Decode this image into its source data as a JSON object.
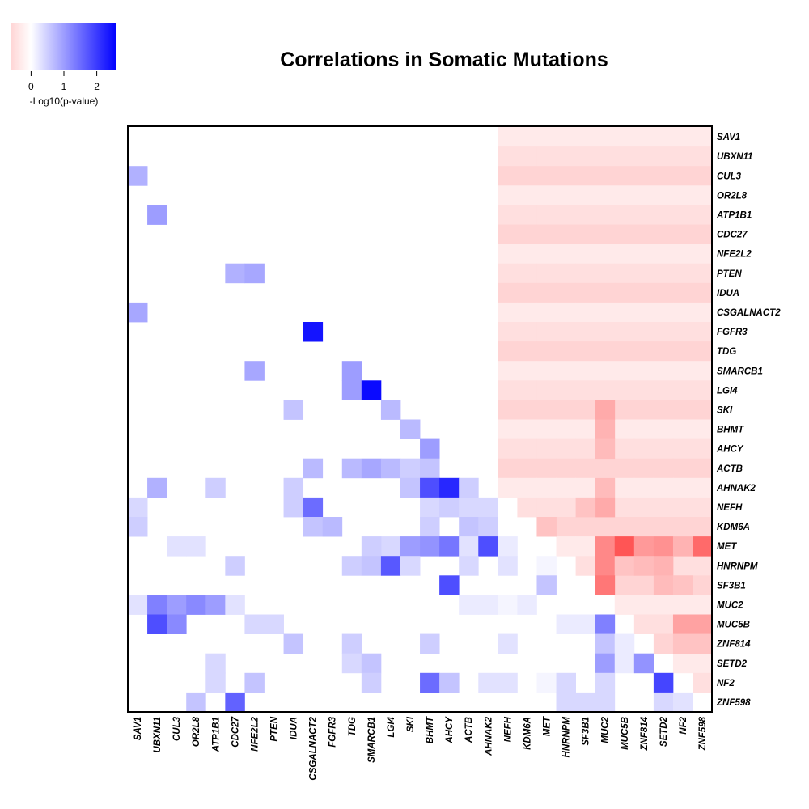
{
  "chart_data": {
    "type": "heatmap",
    "title": "Correlations in Somatic Mutations",
    "genes": [
      "SAV1",
      "UBXN11",
      "CUL3",
      "OR2L8",
      "ATP1B1",
      "CDC27",
      "NFE2L2",
      "PTEN",
      "IDUA",
      "CSGALNACT2",
      "FGFR3",
      "TDG",
      "SMARCB1",
      "LGI4",
      "SKI",
      "BHMT",
      "AHCY",
      "ACTB",
      "AHNAK2",
      "NEFH",
      "KDM6A",
      "MET",
      "HNRNPM",
      "SF3B1",
      "MUC2",
      "MUC5B",
      "ZNF814",
      "SETD2",
      "NF2",
      "ZNF598"
    ],
    "legend": {
      "label": "-Log10(p-value)",
      "ticks": [
        0,
        1,
        2
      ],
      "range": [
        -0.6,
        2.6
      ],
      "colors": {
        "negative": "#ff0000",
        "zero": "#ffffff",
        "positive": "#0000ff"
      }
    },
    "lower_triangle_positive_cells": [
      {
        "row": "CUL3",
        "col": "SAV1",
        "value": 0.8
      },
      {
        "row": "ATP1B1",
        "col": "UBXN11",
        "value": 1.0
      },
      {
        "row": "PTEN",
        "col": "CDC27",
        "value": 0.8
      },
      {
        "row": "PTEN",
        "col": "NFE2L2",
        "value": 0.9
      },
      {
        "row": "CSGALNACT2",
        "col": "SAV1",
        "value": 0.9
      },
      {
        "row": "FGFR3",
        "col": "CSGALNACT2",
        "value": 2.4
      },
      {
        "row": "SMARCB1",
        "col": "NFE2L2",
        "value": 0.9
      },
      {
        "row": "SMARCB1",
        "col": "TDG",
        "value": 1.0
      },
      {
        "row": "LGI4",
        "col": "TDG",
        "value": 1.0
      },
      {
        "row": "LGI4",
        "col": "SMARCB1",
        "value": 2.5
      },
      {
        "row": "SKI",
        "col": "IDUA",
        "value": 0.6
      },
      {
        "row": "SKI",
        "col": "LGI4",
        "value": 0.7
      },
      {
        "row": "BHMT",
        "col": "SKI",
        "value": 0.7
      },
      {
        "row": "AHCY",
        "col": "BHMT",
        "value": 1.0
      },
      {
        "row": "ACTB",
        "col": "CSGALNACT2",
        "value": 0.7
      },
      {
        "row": "ACTB",
        "col": "TDG",
        "value": 0.7
      },
      {
        "row": "ACTB",
        "col": "SMARCB1",
        "value": 0.9
      },
      {
        "row": "ACTB",
        "col": "LGI4",
        "value": 0.7
      },
      {
        "row": "ACTB",
        "col": "SKI",
        "value": 0.5
      },
      {
        "row": "ACTB",
        "col": "BHMT",
        "value": 0.6
      },
      {
        "row": "AHNAK2",
        "col": "UBXN11",
        "value": 0.8
      },
      {
        "row": "AHNAK2",
        "col": "ATP1B1",
        "value": 0.5
      },
      {
        "row": "AHNAK2",
        "col": "IDUA",
        "value": 0.5
      },
      {
        "row": "AHNAK2",
        "col": "SKI",
        "value": 0.6
      },
      {
        "row": "AHNAK2",
        "col": "BHMT",
        "value": 1.8
      },
      {
        "row": "AHNAK2",
        "col": "AHCY",
        "value": 2.2
      },
      {
        "row": "AHNAK2",
        "col": "ACTB",
        "value": 0.5
      },
      {
        "row": "NEFH",
        "col": "SAV1",
        "value": 0.4
      },
      {
        "row": "NEFH",
        "col": "IDUA",
        "value": 0.5
      },
      {
        "row": "NEFH",
        "col": "CSGALNACT2",
        "value": 1.5
      },
      {
        "row": "NEFH",
        "col": "BHMT",
        "value": 0.4
      },
      {
        "row": "NEFH",
        "col": "AHCY",
        "value": 0.5
      },
      {
        "row": "NEFH",
        "col": "ACTB",
        "value": 0.4
      },
      {
        "row": "NEFH",
        "col": "AHNAK2",
        "value": 0.4
      },
      {
        "row": "KDM6A",
        "col": "SAV1",
        "value": 0.5
      },
      {
        "row": "KDM6A",
        "col": "CSGALNACT2",
        "value": 0.6
      },
      {
        "row": "KDM6A",
        "col": "FGFR3",
        "value": 0.7
      },
      {
        "row": "KDM6A",
        "col": "BHMT",
        "value": 0.5
      },
      {
        "row": "KDM6A",
        "col": "ACTB",
        "value": 0.6
      },
      {
        "row": "KDM6A",
        "col": "AHNAK2",
        "value": 0.5
      },
      {
        "row": "MET",
        "col": "CUL3",
        "value": 0.3
      },
      {
        "row": "MET",
        "col": "OR2L8",
        "value": 0.3
      },
      {
        "row": "MET",
        "col": "LGI4",
        "value": 0.4
      },
      {
        "row": "MET",
        "col": "SKI",
        "value": 1.0
      },
      {
        "row": "MET",
        "col": "SMARCB1",
        "value": 0.5
      },
      {
        "row": "MET",
        "col": "BHMT",
        "value": 1.1
      },
      {
        "row": "MET",
        "col": "AHCY",
        "value": 1.4
      },
      {
        "row": "MET",
        "col": "ACTB",
        "value": 0.3
      },
      {
        "row": "MET",
        "col": "AHNAK2",
        "value": 1.8
      },
      {
        "row": "MET",
        "col": "NEFH",
        "value": 0.2
      },
      {
        "row": "HNRNPM",
        "col": "CDC27",
        "value": 0.5
      },
      {
        "row": "HNRNPM",
        "col": "TDG",
        "value": 0.5
      },
      {
        "row": "HNRNPM",
        "col": "SMARCB1",
        "value": 0.6
      },
      {
        "row": "HNRNPM",
        "col": "LGI4",
        "value": 1.7
      },
      {
        "row": "HNRNPM",
        "col": "SKI",
        "value": 0.4
      },
      {
        "row": "HNRNPM",
        "col": "ACTB",
        "value": 0.4
      },
      {
        "row": "HNRNPM",
        "col": "NEFH",
        "value": 0.3
      },
      {
        "row": "HNRNPM",
        "col": "MET",
        "value": 0.1
      },
      {
        "row": "SF3B1",
        "col": "AHCY",
        "value": 1.8
      },
      {
        "row": "SF3B1",
        "col": "MET",
        "value": 0.6
      },
      {
        "row": "MUC2",
        "col": "SAV1",
        "value": 0.3
      },
      {
        "row": "MUC2",
        "col": "UBXN11",
        "value": 1.3
      },
      {
        "row": "MUC2",
        "col": "CUL3",
        "value": 1.0
      },
      {
        "row": "MUC2",
        "col": "OR2L8",
        "value": 1.2
      },
      {
        "row": "MUC2",
        "col": "ATP1B1",
        "value": 1.0
      },
      {
        "row": "MUC2",
        "col": "CDC27",
        "value": 0.3
      },
      {
        "row": "MUC2",
        "col": "ACTB",
        "value": 0.2
      },
      {
        "row": "MUC2",
        "col": "AHNAK2",
        "value": 0.2
      },
      {
        "row": "MUC2",
        "col": "NEFH",
        "value": 0.1
      },
      {
        "row": "MUC2",
        "col": "KDM6A",
        "value": 0.2
      },
      {
        "row": "MUC5B",
        "col": "UBXN11",
        "value": 1.8
      },
      {
        "row": "MUC5B",
        "col": "CUL3",
        "value": 1.2
      },
      {
        "row": "MUC5B",
        "col": "NFE2L2",
        "value": 0.4
      },
      {
        "row": "MUC5B",
        "col": "PTEN",
        "value": 0.4
      },
      {
        "row": "MUC5B",
        "col": "HNRNPM",
        "value": 0.2
      },
      {
        "row": "MUC5B",
        "col": "SF3B1",
        "value": 0.2
      },
      {
        "row": "MUC5B",
        "col": "MUC2",
        "value": 1.3
      },
      {
        "row": "ZNF814",
        "col": "IDUA",
        "value": 0.6
      },
      {
        "row": "ZNF814",
        "col": "TDG",
        "value": 0.5
      },
      {
        "row": "ZNF814",
        "col": "BHMT",
        "value": 0.5
      },
      {
        "row": "ZNF814",
        "col": "NEFH",
        "value": 0.3
      },
      {
        "row": "ZNF814",
        "col": "MUC2",
        "value": 0.6
      },
      {
        "row": "ZNF814",
        "col": "MUC5B",
        "value": 0.2
      },
      {
        "row": "SETD2",
        "col": "ATP1B1",
        "value": 0.4
      },
      {
        "row": "SETD2",
        "col": "TDG",
        "value": 0.4
      },
      {
        "row": "SETD2",
        "col": "SMARCB1",
        "value": 0.6
      },
      {
        "row": "SETD2",
        "col": "MUC2",
        "value": 1.0
      },
      {
        "row": "SETD2",
        "col": "MUC5B",
        "value": 0.2
      },
      {
        "row": "SETD2",
        "col": "ZNF814",
        "value": 1.1
      },
      {
        "row": "NF2",
        "col": "ATP1B1",
        "value": 0.4
      },
      {
        "row": "NF2",
        "col": "NFE2L2",
        "value": 0.6
      },
      {
        "row": "NF2",
        "col": "SMARCB1",
        "value": 0.5
      },
      {
        "row": "NF2",
        "col": "BHMT",
        "value": 1.5
      },
      {
        "row": "NF2",
        "col": "AHCY",
        "value": 0.6
      },
      {
        "row": "NF2",
        "col": "AHNAK2",
        "value": 0.3
      },
      {
        "row": "NF2",
        "col": "NEFH",
        "value": 0.3
      },
      {
        "row": "NF2",
        "col": "MET",
        "value": 0.1
      },
      {
        "row": "NF2",
        "col": "HNRNPM",
        "value": 0.4
      },
      {
        "row": "NF2",
        "col": "MUC2",
        "value": 0.4
      },
      {
        "row": "NF2",
        "col": "SETD2",
        "value": 1.9
      },
      {
        "row": "ZNF598",
        "col": "OR2L8",
        "value": 0.6
      },
      {
        "row": "ZNF598",
        "col": "CDC27",
        "value": 1.6
      },
      {
        "row": "ZNF598",
        "col": "HNRNPM",
        "value": 0.4
      },
      {
        "row": "ZNF598",
        "col": "SF3B1",
        "value": 0.4
      },
      {
        "row": "ZNF598",
        "col": "MUC2",
        "value": 0.4
      },
      {
        "row": "ZNF598",
        "col": "SETD2",
        "value": 0.4
      },
      {
        "row": "ZNF598",
        "col": "NF2",
        "value": 0.3
      }
    ],
    "upper_negative_band": {
      "note": "mostly faint red (≈ -0.05 to -0.15) in the right columns above the diagonal",
      "faint_cols": [
        "NEFH",
        "KDM6A",
        "MET",
        "HNRNPM",
        "SF3B1",
        "MUC2",
        "MUC5B",
        "ZNF814",
        "SETD2",
        "NF2",
        "ZNF598"
      ]
    },
    "upper_negative_cells": [
      {
        "row": "SKI",
        "col": "MUC2",
        "value": -0.2
      },
      {
        "row": "BHMT",
        "col": "MUC2",
        "value": -0.18
      },
      {
        "row": "AHCY",
        "col": "MUC2",
        "value": -0.16
      },
      {
        "row": "AHNAK2",
        "col": "MUC2",
        "value": -0.16
      },
      {
        "row": "NEFH",
        "col": "MUC2",
        "value": -0.2
      },
      {
        "row": "NEFH",
        "col": "SF3B1",
        "value": -0.14
      },
      {
        "row": "KDM6A",
        "col": "MET",
        "value": -0.14
      },
      {
        "row": "MET",
        "col": "MUC2",
        "value": -0.28
      },
      {
        "row": "MET",
        "col": "MUC5B",
        "value": -0.4
      },
      {
        "row": "MET",
        "col": "ZNF814",
        "value": -0.24
      },
      {
        "row": "MET",
        "col": "SETD2",
        "value": -0.26
      },
      {
        "row": "MET",
        "col": "NF2",
        "value": -0.18
      },
      {
        "row": "MET",
        "col": "ZNF598",
        "value": -0.35
      },
      {
        "row": "HNRNPM",
        "col": "MUC2",
        "value": -0.28
      },
      {
        "row": "HNRNPM",
        "col": "MUC5B",
        "value": -0.14
      },
      {
        "row": "HNRNPM",
        "col": "ZNF814",
        "value": -0.16
      },
      {
        "row": "HNRNPM",
        "col": "SETD2",
        "value": -0.18
      },
      {
        "row": "SF3B1",
        "col": "MUC2",
        "value": -0.32
      },
      {
        "row": "SF3B1",
        "col": "SETD2",
        "value": -0.16
      },
      {
        "row": "SF3B1",
        "col": "NF2",
        "value": -0.14
      },
      {
        "row": "MUC5B",
        "col": "NF2",
        "value": -0.22
      },
      {
        "row": "MUC5B",
        "col": "ZNF598",
        "value": -0.22
      },
      {
        "row": "ZNF814",
        "col": "NF2",
        "value": -0.14
      },
      {
        "row": "ZNF814",
        "col": "ZNF598",
        "value": -0.14
      }
    ]
  }
}
